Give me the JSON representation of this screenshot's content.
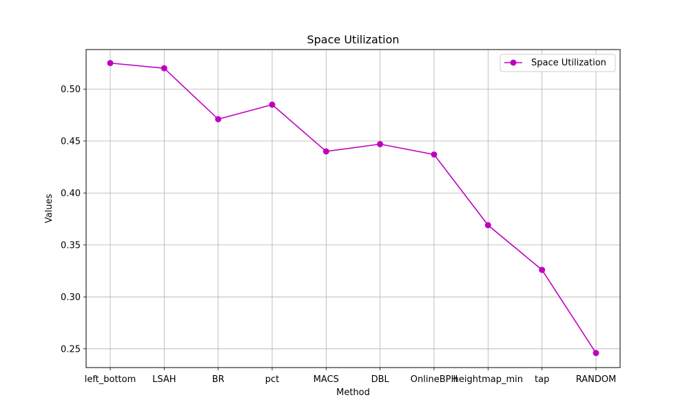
{
  "chart_data": {
    "type": "line",
    "title": "Space Utilization",
    "xlabel": "Method",
    "ylabel": "Values",
    "categories": [
      "left_bottom",
      "LSAH",
      "BR",
      "pct",
      "MACS",
      "DBL",
      "OnlineBPH",
      "heightmap_min",
      "tap",
      "RANDOM"
    ],
    "series": [
      {
        "name": "Space Utilization",
        "values": [
          0.525,
          0.52,
          0.471,
          0.485,
          0.44,
          0.447,
          0.437,
          0.369,
          0.326,
          0.246
        ],
        "color": "#bf00bf",
        "marker": "circle"
      }
    ],
    "yticks": [
      "0.25",
      "0.30",
      "0.35",
      "0.40",
      "0.45",
      "0.50"
    ],
    "ylim": [
      0.232,
      0.538
    ],
    "grid": true,
    "legend_position": "top-right"
  }
}
